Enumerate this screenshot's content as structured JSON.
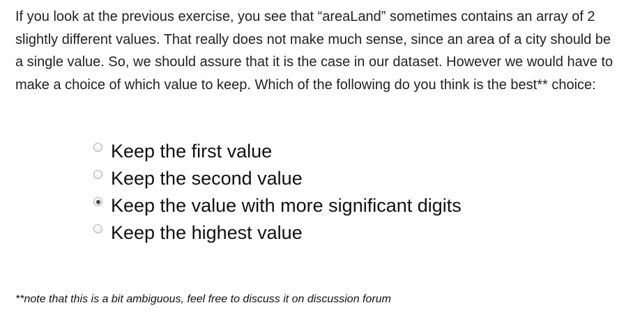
{
  "question": {
    "text": "If you look at the previous exercise, you see that “areaLand” sometimes contains an array of 2 slightly different values. That really does not make much sense, since an area of a city should be a single value. So, we should assure that it is the case in our dataset. However we would have to make a choice of which value to keep. Which of the following do you think is the best** choice:"
  },
  "options": [
    {
      "label": "Keep the first value",
      "checked": false
    },
    {
      "label": "Keep the second value",
      "checked": false
    },
    {
      "label": "Keep the value with more significant digits",
      "checked": true
    },
    {
      "label": "Keep the highest value",
      "checked": false
    }
  ],
  "note": {
    "text": "**note that this is a bit ambiguous, feel free to discuss it on discussion forum"
  },
  "colors": {
    "text": "#222222",
    "background": "#ffffff",
    "radio_border": "#b3b3b3",
    "radio_dot": "#4a4a4a"
  }
}
